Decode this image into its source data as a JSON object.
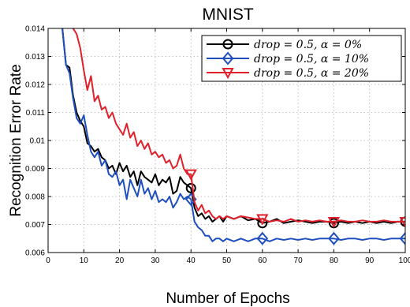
{
  "chart_data": {
    "type": "line",
    "title": "MNIST",
    "xlabel": "Number of Epochs",
    "ylabel": "Recognition Error Rate",
    "xlim": [
      0,
      100
    ],
    "ylim": [
      0.006,
      0.014
    ],
    "xticks": [
      "0",
      "10",
      "20",
      "30",
      "40",
      "50",
      "60",
      "70",
      "80",
      "90",
      "100"
    ],
    "yticks": [
      "0.006",
      "0.007",
      "0.008",
      "0.009",
      "0.01",
      "0.011",
      "0.012",
      "0.013",
      "0.014"
    ],
    "grid": true,
    "legend_position": "top-right",
    "series": [
      {
        "name": "drop = 0.5, α = 0%",
        "color": "#000000",
        "marker": "circle",
        "marker_x": [
          40,
          60,
          80,
          100
        ],
        "x": [
          4,
          5,
          6,
          7,
          8,
          9,
          10,
          11,
          12,
          13,
          14,
          15,
          16,
          17,
          18,
          19,
          20,
          21,
          22,
          23,
          24,
          25,
          26,
          27,
          28,
          29,
          30,
          31,
          32,
          33,
          34,
          35,
          36,
          37,
          38,
          39,
          40,
          41,
          42,
          43,
          44,
          45,
          46,
          47,
          48,
          49,
          50,
          52,
          54,
          56,
          58,
          60,
          62,
          64,
          66,
          68,
          70,
          72,
          74,
          76,
          78,
          80,
          82,
          84,
          86,
          88,
          90,
          92,
          94,
          96,
          98,
          100
        ],
        "y": [
          0.014,
          0.0127,
          0.0126,
          0.0116,
          0.011,
          0.0107,
          0.0105,
          0.0099,
          0.0098,
          0.0096,
          0.0097,
          0.0094,
          0.0093,
          0.009,
          0.0091,
          0.0088,
          0.0092,
          0.0089,
          0.0091,
          0.0087,
          0.0089,
          0.0084,
          0.0089,
          0.0087,
          0.0086,
          0.0085,
          0.0088,
          0.0084,
          0.0086,
          0.0085,
          0.0087,
          0.0081,
          0.0082,
          0.0087,
          0.0085,
          0.0084,
          0.0083,
          0.0076,
          0.0073,
          0.0074,
          0.0072,
          0.0073,
          0.0071,
          0.0072,
          0.0073,
          0.0071,
          0.0073,
          0.0072,
          0.0073,
          0.00715,
          0.0072,
          0.00705,
          0.0071,
          0.0072,
          0.00705,
          0.0071,
          0.00715,
          0.0071,
          0.00705,
          0.0071,
          0.0071,
          0.00705,
          0.0071,
          0.00705,
          0.0071,
          0.00705,
          0.0071,
          0.00705,
          0.0071,
          0.00705,
          0.0071,
          0.0071
        ]
      },
      {
        "name": "drop = 0.5, α = 10%",
        "color": "#1f4fbf",
        "marker": "diamond",
        "marker_x": [
          40,
          60,
          80,
          100
        ],
        "x": [
          4,
          5,
          6,
          7,
          8,
          9,
          10,
          11,
          12,
          13,
          14,
          15,
          16,
          17,
          18,
          19,
          20,
          21,
          22,
          23,
          24,
          25,
          26,
          27,
          28,
          29,
          30,
          31,
          32,
          33,
          34,
          35,
          36,
          37,
          38,
          39,
          40,
          41,
          42,
          43,
          44,
          45,
          46,
          47,
          48,
          49,
          50,
          52,
          54,
          56,
          58,
          60,
          62,
          64,
          66,
          68,
          70,
          72,
          74,
          76,
          78,
          80,
          82,
          84,
          86,
          88,
          90,
          92,
          94,
          96,
          98,
          100
        ],
        "y": [
          0.014,
          0.0127,
          0.0124,
          0.0115,
          0.0108,
          0.0106,
          0.0109,
          0.0102,
          0.0096,
          0.0094,
          0.0096,
          0.0091,
          0.0093,
          0.0088,
          0.0087,
          0.0089,
          0.0084,
          0.0086,
          0.0079,
          0.0086,
          0.0083,
          0.008,
          0.0086,
          0.0081,
          0.0083,
          0.0079,
          0.0082,
          0.0078,
          0.0079,
          0.0078,
          0.008,
          0.0076,
          0.0078,
          0.0081,
          0.0079,
          0.008,
          0.0079,
          0.0071,
          0.0069,
          0.0068,
          0.0066,
          0.0066,
          0.0064,
          0.0065,
          0.0065,
          0.0064,
          0.0065,
          0.0064,
          0.0065,
          0.0064,
          0.0065,
          0.0065,
          0.0064,
          0.0065,
          0.00645,
          0.0065,
          0.00645,
          0.0065,
          0.00645,
          0.0065,
          0.0065,
          0.0065,
          0.00645,
          0.0065,
          0.0065,
          0.00645,
          0.0065,
          0.0065,
          0.00645,
          0.0065,
          0.0065,
          0.0065
        ]
      },
      {
        "name": "drop = 0.5, α = 20%",
        "color": "#e0202a",
        "marker": "triangle-down",
        "marker_x": [
          40,
          60,
          80,
          100
        ],
        "x": [
          4,
          5,
          6,
          7,
          8,
          9,
          10,
          11,
          12,
          13,
          14,
          15,
          16,
          17,
          18,
          19,
          20,
          21,
          22,
          23,
          24,
          25,
          26,
          27,
          28,
          29,
          30,
          31,
          32,
          33,
          34,
          35,
          36,
          37,
          38,
          39,
          40,
          41,
          42,
          43,
          44,
          45,
          46,
          47,
          48,
          49,
          50,
          52,
          54,
          56,
          58,
          60,
          62,
          64,
          66,
          68,
          70,
          72,
          74,
          76,
          78,
          80,
          82,
          84,
          86,
          88,
          90,
          92,
          94,
          96,
          98,
          100
        ],
        "y": [
          0.0144,
          0.0144,
          0.0143,
          0.014,
          0.0138,
          0.0133,
          0.0125,
          0.0118,
          0.0123,
          0.0114,
          0.0116,
          0.0111,
          0.0112,
          0.0108,
          0.011,
          0.0106,
          0.0104,
          0.0102,
          0.0106,
          0.0101,
          0.0103,
          0.0098,
          0.01,
          0.0097,
          0.0099,
          0.0095,
          0.0096,
          0.0094,
          0.0095,
          0.0092,
          0.0093,
          0.009,
          0.0091,
          0.0095,
          0.009,
          0.0088,
          0.0088,
          0.0078,
          0.0075,
          0.0077,
          0.0074,
          0.0075,
          0.0073,
          0.0072,
          0.0073,
          0.0072,
          0.0073,
          0.0072,
          0.0073,
          0.00725,
          0.0072,
          0.0072,
          0.0071,
          0.00715,
          0.0071,
          0.0072,
          0.0071,
          0.00715,
          0.0071,
          0.00715,
          0.0071,
          0.0071,
          0.00715,
          0.0071,
          0.0071,
          0.00715,
          0.0071,
          0.0071,
          0.00715,
          0.0071,
          0.0071,
          0.0071
        ]
      }
    ]
  }
}
